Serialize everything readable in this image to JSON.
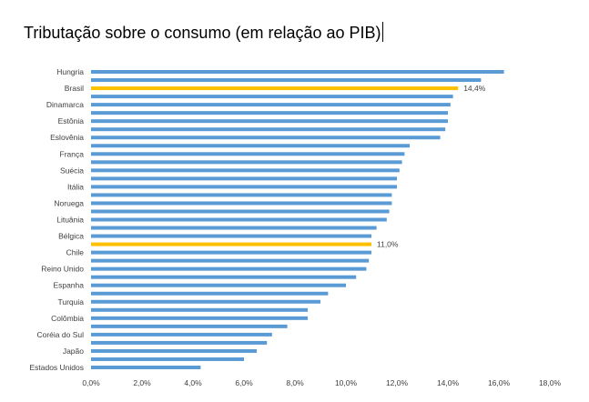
{
  "chart_data": {
    "type": "bar",
    "orientation": "horizontal",
    "title": "Tributação sobre o consumo (em relação ao PIB)",
    "xlim": [
      0,
      18
    ],
    "xticks": [
      "0,0%",
      "2,0%",
      "4,0%",
      "6,0%",
      "8,0%",
      "10,0%",
      "12,0%",
      "14,0%",
      "16,0%",
      "18,0%"
    ],
    "grid": false,
    "legend": "none",
    "bar_color": "#5b9bd5",
    "highlight_color": "#ffc000",
    "bars": [
      {
        "category": "Hungria",
        "value": 16.2
      },
      {
        "category": "",
        "value": 15.3
      },
      {
        "category": "Brasil",
        "value": 14.4,
        "highlight": true,
        "label": "14,4%"
      },
      {
        "category": "",
        "value": 14.2
      },
      {
        "category": "Dinamarca",
        "value": 14.1
      },
      {
        "category": "",
        "value": 14.0
      },
      {
        "category": "Estônia",
        "value": 14.0
      },
      {
        "category": "",
        "value": 13.9
      },
      {
        "category": "Eslovênia",
        "value": 13.7
      },
      {
        "category": "",
        "value": 12.5
      },
      {
        "category": "França",
        "value": 12.3
      },
      {
        "category": "",
        "value": 12.2
      },
      {
        "category": "Suécia",
        "value": 12.1
      },
      {
        "category": "",
        "value": 12.0
      },
      {
        "category": "Itália",
        "value": 12.0
      },
      {
        "category": "",
        "value": 11.8
      },
      {
        "category": "Noruega",
        "value": 11.8
      },
      {
        "category": "",
        "value": 11.7
      },
      {
        "category": "Lituânia",
        "value": 11.6
      },
      {
        "category": "",
        "value": 11.2
      },
      {
        "category": "Bélgica",
        "value": 11.0
      },
      {
        "category": "",
        "value": 11.0,
        "highlight": true,
        "label": "11,0%"
      },
      {
        "category": "Chile",
        "value": 11.0
      },
      {
        "category": "",
        "value": 10.9
      },
      {
        "category": "Reino Unido",
        "value": 10.8
      },
      {
        "category": "",
        "value": 10.4
      },
      {
        "category": "Espanha",
        "value": 10.0
      },
      {
        "category": "",
        "value": 9.3
      },
      {
        "category": "Turquia",
        "value": 9.0
      },
      {
        "category": "",
        "value": 8.5
      },
      {
        "category": "Colômbia",
        "value": 8.5
      },
      {
        "category": "",
        "value": 7.7
      },
      {
        "category": "Coréia do Sul",
        "value": 7.1
      },
      {
        "category": "",
        "value": 6.9
      },
      {
        "category": "Japão",
        "value": 6.5
      },
      {
        "category": "",
        "value": 6.0
      },
      {
        "category": "Estados Unidos",
        "value": 4.3
      }
    ]
  }
}
